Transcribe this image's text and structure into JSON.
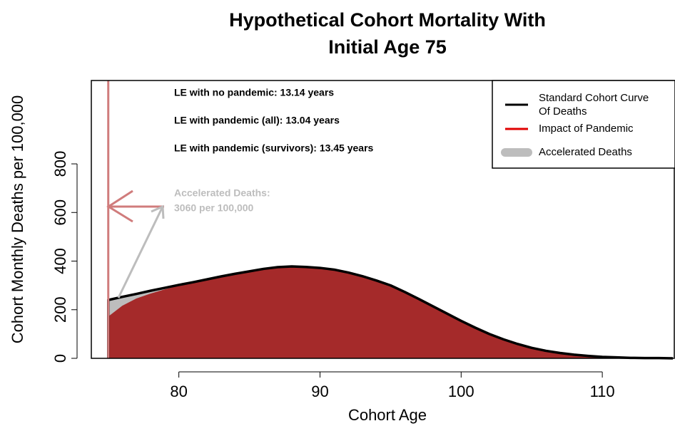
{
  "chart_data": {
    "type": "area",
    "title": [
      "Hypothetical Cohort Mortality With",
      "Initial Age 75"
    ],
    "x_label": "Cohort Age",
    "y_label": "Cohort Monthly Deaths per 100,000",
    "xlim": [
      73.8,
      115.1
    ],
    "ylim": [
      0,
      1143
    ],
    "xticks": [
      80,
      90,
      100,
      110
    ],
    "yticks": [
      0,
      200,
      400,
      600,
      800
    ],
    "x": [
      75,
      76,
      77,
      78,
      79,
      80,
      81,
      82,
      83,
      84,
      85,
      86,
      87,
      88,
      89,
      90,
      91,
      92,
      93,
      94,
      95,
      96,
      97,
      98,
      99,
      100,
      101,
      102,
      103,
      104,
      105,
      106,
      107,
      108,
      109,
      110,
      111,
      112,
      113,
      114,
      115
    ],
    "series": [
      {
        "name": [
          "Standard Cohort Curve",
          "Of Deaths"
        ],
        "color": "#000000",
        "values": [
          240,
          253,
          265,
          278,
          290,
          302,
          313,
          325,
          337,
          348,
          358,
          368,
          375,
          378,
          376,
          372,
          365,
          353,
          338,
          320,
          300,
          273,
          244,
          214,
          184,
          154,
          126,
          100,
          78,
          59,
          43,
          31,
          22,
          15,
          10,
          6,
          4,
          2,
          1,
          1,
          0
        ]
      },
      {
        "name": "Impact of Pandemic",
        "color": "#e00000",
        "area_color": "#a52a2a",
        "values": [
          170,
          215,
          245,
          265,
          282,
          297,
          310,
          323,
          336,
          348,
          358,
          368,
          375,
          378,
          376,
          372,
          365,
          353,
          338,
          320,
          300,
          273,
          244,
          214,
          184,
          154,
          126,
          100,
          78,
          59,
          43,
          31,
          22,
          15,
          10,
          6,
          4,
          2,
          1,
          1,
          0
        ]
      }
    ],
    "accelerated": {
      "name": "Accelerated Deaths",
      "color": "#bdbdbd"
    },
    "annotations": [
      "LE with no pandemic:  13.14  years",
      "LE with pandemic (all):  13.04  years",
      "LE with pandemic (survivors):  13.45  years"
    ],
    "accelerated_note": [
      "Accelerated Deaths:",
      "3060 per 100,000"
    ]
  }
}
